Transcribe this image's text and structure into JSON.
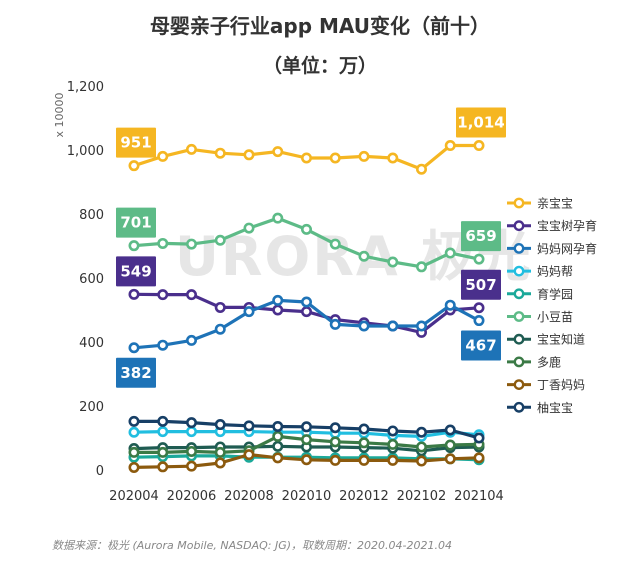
{
  "chart_data": {
    "type": "line",
    "title": "母婴亲子行业app MAU变化（前十）",
    "subtitle": "（单位：万）",
    "unit_label": "x 10000",
    "watermark": "URORA 极光",
    "footer": "数据来源：极光 (Aurora Mobile, NASDAQ: JG)，取数周期：2020.04-2021.04",
    "x": [
      "202004",
      "202005",
      "202006",
      "202007",
      "202008",
      "202009",
      "202010",
      "202011",
      "202012",
      "202101",
      "202102",
      "202103",
      "202104"
    ],
    "x_tick_labels": [
      "202004",
      "202006",
      "202008",
      "202010",
      "202012",
      "202102",
      "202104"
    ],
    "y_ticks_lower": [
      "0",
      "200",
      "400",
      "600",
      "800"
    ],
    "y_ticks_upper": [
      "1,000",
      "1,200"
    ],
    "series": [
      {
        "name": "亲宝宝",
        "color": "#F5B622",
        "values": [
          951,
          980,
          1002,
          990,
          985,
          995,
          975,
          975,
          980,
          975,
          940,
          1014,
          1014
        ]
      },
      {
        "name": "宝宝树孕育",
        "color": "#4A2F8C",
        "values": [
          549,
          548,
          548,
          508,
          508,
          500,
          495,
          470,
          460,
          450,
          430,
          500,
          507
        ]
      },
      {
        "name": "妈妈网孕育",
        "color": "#1E73B7",
        "values": [
          382,
          390,
          405,
          440,
          495,
          530,
          525,
          455,
          450,
          450,
          450,
          515,
          467
        ]
      },
      {
        "name": "妈妈帮",
        "color": "#21BEE0",
        "values": [
          118,
          120,
          120,
          120,
          120,
          118,
          118,
          115,
          115,
          108,
          105,
          118,
          110
        ]
      },
      {
        "name": "育学园",
        "color": "#1BA99A",
        "values": [
          40,
          42,
          44,
          44,
          40,
          40,
          40,
          38,
          38,
          38,
          35,
          35,
          32
        ]
      },
      {
        "name": "小豆苗",
        "color": "#5DBB87",
        "values": [
          701,
          708,
          706,
          718,
          756,
          787,
          752,
          706,
          668,
          650,
          635,
          678,
          659
        ]
      },
      {
        "name": "宝宝知道",
        "color": "#1F5C52",
        "values": [
          67,
          70,
          70,
          72,
          72,
          74,
          72,
          72,
          70,
          68,
          60,
          70,
          72
        ]
      },
      {
        "name": "多鹿",
        "color": "#3B7A46",
        "values": [
          55,
          55,
          58,
          55,
          60,
          105,
          95,
          88,
          85,
          80,
          72,
          78,
          80
        ]
      },
      {
        "name": "丁香妈妈",
        "color": "#8C5A0E",
        "values": [
          8,
          10,
          12,
          22,
          48,
          38,
          32,
          30,
          30,
          30,
          28,
          35,
          38
        ]
      },
      {
        "name": "柚宝宝",
        "color": "#173F66",
        "values": [
          152,
          152,
          148,
          142,
          138,
          136,
          135,
          132,
          128,
          122,
          118,
          125,
          100
        ]
      }
    ],
    "callouts": [
      {
        "series": "亲宝宝",
        "point": 0,
        "label": "951"
      },
      {
        "series": "亲宝宝",
        "point": 12,
        "label": "1,014"
      },
      {
        "series": "小豆苗",
        "point": 0,
        "label": "701"
      },
      {
        "series": "小豆苗",
        "point": 12,
        "label": "659"
      },
      {
        "series": "宝宝树孕育",
        "point": 0,
        "label": "549"
      },
      {
        "series": "宝宝树孕育",
        "point": 12,
        "label": "507"
      },
      {
        "series": "妈妈网孕育",
        "point": 0,
        "label": "382"
      },
      {
        "series": "妈妈网孕育",
        "point": 12,
        "label": "467"
      }
    ],
    "legend_position": "right"
  }
}
